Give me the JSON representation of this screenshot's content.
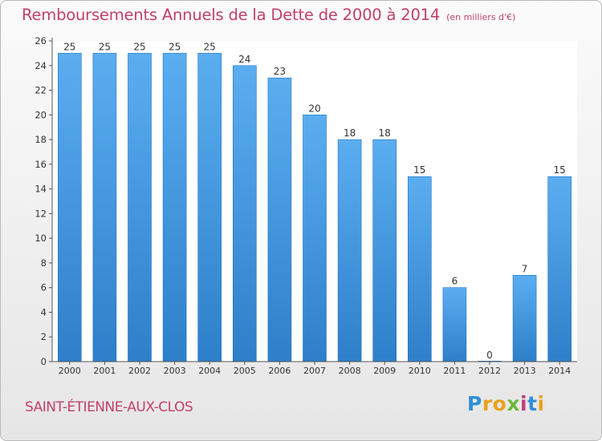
{
  "chart_data": {
    "type": "bar",
    "title": "Remboursements Annuels de la Dette de 2000 à 2014",
    "subtitle": "(en milliers d'€)",
    "categories": [
      "2000",
      "2001",
      "2002",
      "2003",
      "2004",
      "2005",
      "2006",
      "2007",
      "2008",
      "2009",
      "2010",
      "2011",
      "2012",
      "2013",
      "2014"
    ],
    "values": [
      25,
      25,
      25,
      25,
      25,
      24,
      23,
      20,
      18,
      18,
      15,
      6,
      0,
      7,
      15
    ],
    "ylim": [
      0,
      26
    ],
    "yticks": [
      0,
      2,
      4,
      6,
      8,
      10,
      12,
      14,
      16,
      18,
      20,
      22,
      24,
      26
    ],
    "grid": false,
    "bar_color": "#4a9ee3",
    "bar_edge_color": "#2372c0"
  },
  "place_name": "SAINT-ÉTIENNE-AUX-CLOS",
  "logo": {
    "letters": [
      {
        "ch": "P",
        "color": "#2f8fd8"
      },
      {
        "ch": "r",
        "color": "#e9a21b"
      },
      {
        "ch": "o",
        "color": "#e9a21b"
      },
      {
        "ch": "x",
        "color": "#6bb83a"
      },
      {
        "ch": "i",
        "color": "#c23b78"
      },
      {
        "ch": "t",
        "color": "#2f8fd8"
      },
      {
        "ch": "i",
        "color": "#e9a21b"
      }
    ]
  },
  "title_color": "#c2406a"
}
